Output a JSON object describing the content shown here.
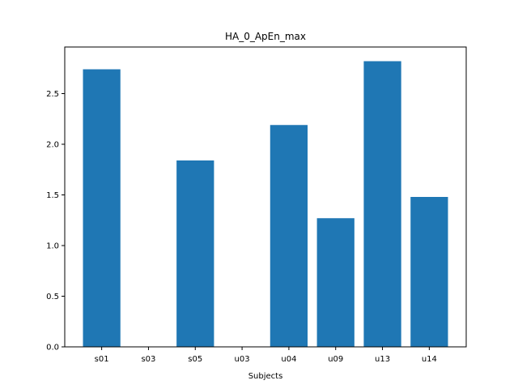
{
  "chart_data": {
    "type": "bar",
    "title": "HA_0_ApEn_max",
    "xlabel": "Subjects",
    "ylabel": "",
    "categories": [
      "s01",
      "s03",
      "s05",
      "u03",
      "u04",
      "u09",
      "u13",
      "u14"
    ],
    "values": [
      2.74,
      0.0,
      1.84,
      0.0,
      2.19,
      1.27,
      2.82,
      1.48
    ],
    "ylim": [
      0,
      2.96
    ],
    "yticks": [
      "0.0",
      "0.5",
      "1.0",
      "1.5",
      "2.0",
      "2.5"
    ],
    "bar_color": "#1f77b4",
    "grid": false,
    "legend": "none"
  }
}
